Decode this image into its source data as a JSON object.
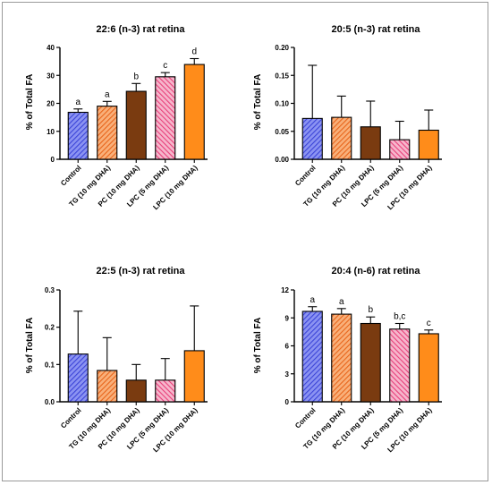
{
  "styles": [
    {
      "name": "Control",
      "color": "#5a63e6",
      "pattern": "diag-blue"
    },
    {
      "name": "TG (10 mg DHA)",
      "color": "#f47b20",
      "pattern": "diag-orange"
    },
    {
      "name": "PC (10 mg DHA)",
      "color": "#7a3b10",
      "pattern": "solid"
    },
    {
      "name": "LPC (5 mg DHA)",
      "color": "#e85c8a",
      "pattern": "diag-pink"
    },
    {
      "name": "LPC (10 mg DHA)",
      "color": "#ff8c1a",
      "pattern": "solid"
    }
  ],
  "chart_data": [
    {
      "type": "bar",
      "title": "22:6 (n-3) rat retina",
      "ylabel": "% of Total FA",
      "categories": [
        "Control",
        "TG (10 mg DHA)",
        "PC (10 mg DHA)",
        "LPC (5 mg DHA)",
        "LPC (10 mg DHA)"
      ],
      "values": [
        16.8,
        19.0,
        24.3,
        29.5,
        33.9
      ],
      "errors": [
        1.2,
        1.7,
        2.8,
        1.5,
        2.1
      ],
      "annotations": [
        "a",
        "a",
        "b",
        "c",
        "d"
      ],
      "ylim": [
        0,
        40
      ],
      "yticks": [
        "0",
        "10",
        "20",
        "30",
        "40"
      ]
    },
    {
      "type": "bar",
      "title": "20:5 (n-3) rat retina",
      "ylabel": "% of Total FA",
      "categories": [
        "Control",
        "TG (10 mg DHA)",
        "PC (10 mg DHA)",
        "LPC (5 mg DHA)",
        "LPC (10 mg DHA)"
      ],
      "values": [
        0.073,
        0.075,
        0.058,
        0.035,
        0.052
      ],
      "errors": [
        0.095,
        0.038,
        0.046,
        0.033,
        0.036
      ],
      "annotations": [
        "",
        "",
        "",
        "",
        ""
      ],
      "ylim": [
        0,
        0.2
      ],
      "yticks": [
        "0.00",
        "0.05",
        "0.10",
        "0.15",
        "0.20"
      ]
    },
    {
      "type": "bar",
      "title": "22:5 (n-3) rat retina",
      "ylabel": "% of Total FA",
      "categories": [
        "Control",
        "TG (10 mg DHA)",
        "PC (10 mg DHA)",
        "LPC (5 mg DHA)",
        "LPC (10 mg DHA)"
      ],
      "values": [
        0.128,
        0.084,
        0.058,
        0.058,
        0.137
      ],
      "errors": [
        0.115,
        0.088,
        0.042,
        0.058,
        0.12
      ],
      "annotations": [
        "",
        "",
        "",
        "",
        ""
      ],
      "ylim": [
        0,
        0.3
      ],
      "yticks": [
        "0.0",
        "0.1",
        "0.2",
        "0.3"
      ]
    },
    {
      "type": "bar",
      "title": "20:4 (n-6) rat retina",
      "ylabel": "% of Total FA",
      "categories": [
        "Control",
        "TG (10 mg DHA)",
        "PC (10 mg DHA)",
        "LPC (5 mg DHA)",
        "LPC (10 mg DHA)"
      ],
      "values": [
        9.7,
        9.4,
        8.4,
        7.8,
        7.3
      ],
      "errors": [
        0.5,
        0.6,
        0.7,
        0.6,
        0.4
      ],
      "annotations": [
        "a",
        "a",
        "b",
        "b,c",
        "c"
      ],
      "ylim": [
        0,
        12
      ],
      "yticks": [
        "0",
        "3",
        "6",
        "9",
        "12"
      ]
    }
  ]
}
